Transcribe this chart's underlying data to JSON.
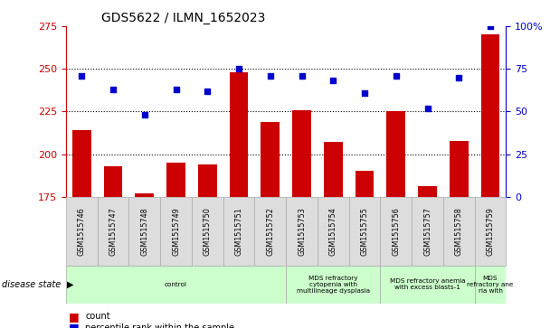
{
  "title": "GDS5622 / ILMN_1652023",
  "samples": [
    "GSM1515746",
    "GSM1515747",
    "GSM1515748",
    "GSM1515749",
    "GSM1515750",
    "GSM1515751",
    "GSM1515752",
    "GSM1515753",
    "GSM1515754",
    "GSM1515755",
    "GSM1515756",
    "GSM1515757",
    "GSM1515758",
    "GSM1515759"
  ],
  "counts": [
    214,
    193,
    177,
    195,
    194,
    248,
    219,
    226,
    207,
    190,
    225,
    181,
    208,
    270
  ],
  "percentiles": [
    71,
    63,
    48,
    63,
    62,
    75,
    71,
    71,
    68,
    61,
    71,
    52,
    70,
    100
  ],
  "ylim_left": [
    175,
    275
  ],
  "ylim_right": [
    0,
    100
  ],
  "yticks_left": [
    175,
    200,
    225,
    250,
    275
  ],
  "yticks_right": [
    0,
    25,
    50,
    75,
    100
  ],
  "bar_color": "#cc0000",
  "dot_color": "#0000cc",
  "background_color": "#ffffff",
  "title_fontsize": 10,
  "axis_label_color_left": "#cc0000",
  "axis_label_color_right": "#0000cc",
  "disease_groups": [
    {
      "label": "control",
      "start": 0,
      "end": 7
    },
    {
      "label": "MDS refractory\ncytopenia with\nmultilineage dysplasia",
      "start": 7,
      "end": 10
    },
    {
      "label": "MDS refractory anemia\nwith excess blasts-1",
      "start": 10,
      "end": 13
    },
    {
      "label": "MDS\nrefractory ane\nria with",
      "start": 13,
      "end": 14
    }
  ],
  "disease_state_label": "disease state",
  "legend_count_label": "count",
  "legend_percentile_label": "percentile rank within the sample",
  "cell_bg": "#dddddd",
  "cell_edge": "#aaaaaa",
  "group_bg": "#ccffcc",
  "group_edge": "#aaaaaa"
}
